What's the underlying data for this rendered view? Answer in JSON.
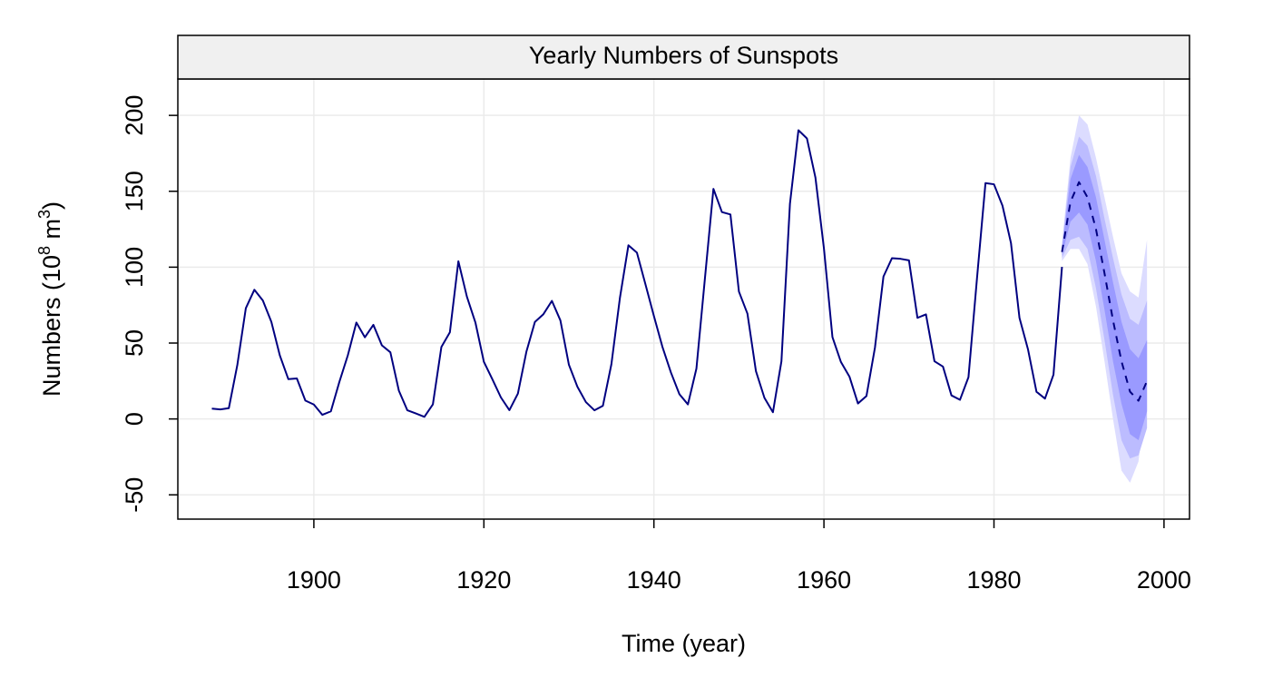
{
  "chart_data": {
    "type": "line",
    "title": "Yearly Numbers of Sunspots",
    "xlabel": "Time (year)",
    "ylabel": {
      "prefix": "Numbers (10",
      "sup1": "8",
      "middle": " m",
      "sup2": "3",
      "suffix": ")"
    },
    "xlim": [
      1884,
      2003
    ],
    "ylim": [
      -66,
      224
    ],
    "xticks": [
      1900,
      1920,
      1940,
      1960,
      1980,
      2000
    ],
    "yticks": [
      -50,
      0,
      50,
      100,
      150,
      200
    ],
    "grid": true,
    "colors": {
      "line": "#000080",
      "band_outer": "#dcdcff",
      "band_middle": "#bcbcff",
      "band_inner": "#9a9aff",
      "grid": "#ebebeb",
      "strip": "#f0f0f0"
    },
    "series": [
      {
        "style": "solid",
        "x": [
          1888,
          1889,
          1890,
          1891,
          1892,
          1893,
          1894,
          1895,
          1896,
          1897,
          1898,
          1899,
          1900,
          1901,
          1902,
          1903,
          1904,
          1905,
          1906,
          1907,
          1908,
          1909,
          1910,
          1911,
          1912,
          1913,
          1914,
          1915,
          1916,
          1917,
          1918,
          1919,
          1920,
          1921,
          1922,
          1923,
          1924,
          1925,
          1926,
          1927,
          1928,
          1929,
          1930,
          1931,
          1932,
          1933,
          1934,
          1935,
          1936,
          1937,
          1938,
          1939,
          1940,
          1941,
          1942,
          1943,
          1944,
          1945,
          1946,
          1947,
          1948,
          1949,
          1950,
          1951,
          1952,
          1953,
          1954,
          1955,
          1956,
          1957,
          1958,
          1959,
          1960,
          1961,
          1962,
          1963,
          1964,
          1965,
          1966,
          1967,
          1968,
          1969,
          1970,
          1971,
          1972,
          1973,
          1974,
          1975,
          1976,
          1977,
          1978,
          1979,
          1980,
          1981,
          1982,
          1983,
          1984,
          1985,
          1986,
          1987,
          1988
        ],
        "y": [
          6.8,
          6.3,
          7.1,
          35.6,
          73.0,
          85.1,
          78.0,
          64.0,
          41.8,
          26.2,
          26.7,
          12.1,
          9.5,
          2.7,
          5.0,
          24.4,
          42.0,
          63.5,
          53.8,
          62.0,
          48.5,
          43.9,
          18.6,
          5.7,
          3.6,
          1.4,
          9.6,
          47.4,
          57.1,
          103.9,
          80.6,
          63.6,
          37.6,
          26.1,
          14.2,
          5.8,
          16.7,
          44.3,
          63.9,
          69.0,
          77.8,
          64.9,
          35.7,
          21.2,
          11.1,
          5.7,
          8.7,
          36.1,
          79.7,
          114.4,
          109.6,
          88.8,
          67.8,
          47.5,
          30.6,
          16.3,
          9.6,
          33.2,
          92.6,
          151.6,
          136.3,
          134.7,
          83.9,
          69.4,
          31.5,
          13.9,
          4.4,
          38.0,
          141.7,
          190.2,
          184.8,
          159.0,
          112.3,
          53.9,
          37.5,
          27.9,
          10.2,
          15.1,
          47.0,
          93.8,
          105.9,
          105.5,
          104.5,
          66.6,
          68.9,
          38.0,
          34.5,
          15.5,
          12.6,
          27.5,
          92.5,
          155.4,
          154.6,
          140.5,
          115.9,
          66.6,
          45.9,
          17.9,
          13.4,
          29.2,
          100.2
        ]
      },
      {
        "style": "dashed",
        "x": [
          1988,
          1989,
          1990,
          1991,
          1992,
          1993,
          1994,
          1995,
          1996,
          1997,
          1998
        ],
        "y": [
          110,
          143,
          156,
          146,
          125,
          96,
          65,
          38,
          18,
          12,
          25
        ]
      }
    ],
    "forecast_bands": {
      "x": [
        1988,
        1989,
        1990,
        1991,
        1992,
        1993,
        1994,
        1995,
        1996,
        1997,
        1998
      ],
      "inner": {
        "lower": [
          108,
          130,
          136,
          128,
          104,
          72,
          38,
          10,
          -10,
          -14,
          5
        ],
        "upper": [
          112,
          158,
          174,
          166,
          146,
          118,
          90,
          64,
          46,
          40,
          52
        ]
      },
      "middle": {
        "lower": [
          106,
          118,
          120,
          112,
          86,
          52,
          16,
          -14,
          -26,
          -24,
          -6
        ],
        "upper": [
          114,
          166,
          186,
          180,
          160,
          132,
          106,
          82,
          66,
          62,
          78
        ]
      },
      "outer": {
        "lower": [
          104,
          112,
          112,
          102,
          74,
          38,
          0,
          -34,
          -42,
          -28,
          22
        ],
        "upper": [
          116,
          172,
          200,
          194,
          172,
          146,
          120,
          96,
          84,
          80,
          118
        ]
      }
    }
  }
}
